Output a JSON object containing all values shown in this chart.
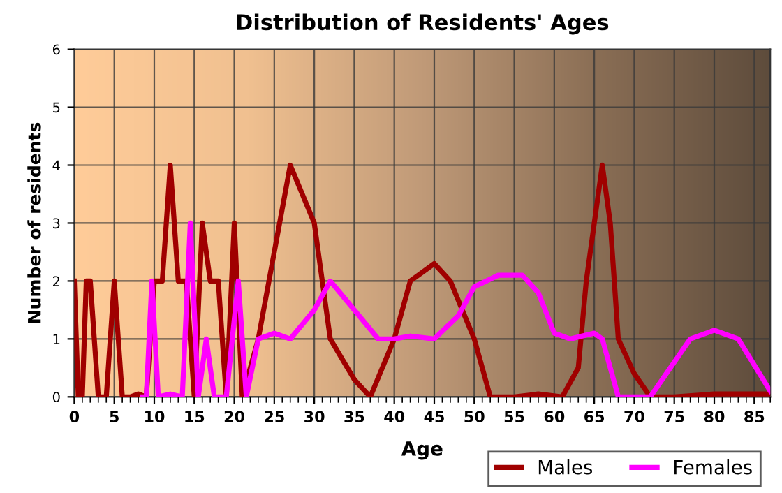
{
  "chart_data": {
    "type": "line",
    "title": "Distribution of Residents' Ages",
    "xlabel": "Age",
    "ylabel": "Number of residents",
    "xlim": [
      0,
      87
    ],
    "xticks": [
      0,
      5,
      10,
      15,
      20,
      25,
      30,
      35,
      40,
      45,
      50,
      55,
      60,
      65,
      70,
      75,
      80,
      85
    ],
    "ylim": [
      0,
      6
    ],
    "yticks": [
      0,
      1,
      2,
      3,
      4,
      5,
      6
    ],
    "grid": true,
    "legend": "bottom right",
    "marker": "none",
    "line_style": "solid",
    "series": [
      {
        "name": "Males",
        "color": "#a00000",
        "x": [
          0,
          0.5,
          1,
          1.5,
          2,
          3,
          4,
          5,
          6,
          7,
          8,
          9,
          10,
          11,
          12,
          13,
          14,
          15,
          16,
          17,
          18,
          19,
          20,
          21,
          23,
          25,
          27,
          30,
          32,
          35,
          37,
          40,
          42,
          45,
          47,
          50,
          52,
          55,
          58,
          61,
          63,
          64,
          66,
          67,
          68,
          70,
          72,
          75,
          80,
          87
        ],
        "values": [
          2,
          0,
          0,
          2,
          2,
          0,
          0,
          2,
          0,
          0,
          0.05,
          0,
          2,
          2,
          4,
          2,
          2,
          0,
          3,
          2,
          2,
          0,
          3,
          0,
          1,
          2.5,
          4,
          3,
          1,
          0.3,
          0,
          1,
          2,
          2.3,
          2,
          1,
          0,
          0,
          0.05,
          0,
          0.5,
          2,
          4,
          3,
          1,
          0.4,
          0,
          0,
          0.05,
          0.05
        ]
      },
      {
        "name": "Females",
        "color": "#ff00ff",
        "x": [
          8.5,
          9,
          9.7,
          10.5,
          12,
          13.5,
          14.5,
          15.5,
          16.5,
          17.5,
          19,
          20.5,
          21.5,
          23,
          25,
          27,
          30,
          32,
          35,
          38,
          40,
          42,
          45,
          48,
          50,
          53,
          56,
          58,
          60,
          62,
          65,
          66,
          68,
          72,
          74,
          77,
          80,
          83,
          87
        ],
        "values": [
          0,
          0,
          2,
          0,
          0.05,
          0,
          3,
          0,
          1,
          0,
          0,
          2,
          0,
          1,
          1.1,
          1,
          1.5,
          2,
          1.5,
          1,
          1,
          1.05,
          1,
          1.4,
          1.9,
          2.1,
          2.1,
          1.8,
          1.1,
          1,
          1.1,
          1,
          0,
          0,
          0.4,
          1,
          1.15,
          1,
          0.1
        ]
      }
    ]
  }
}
